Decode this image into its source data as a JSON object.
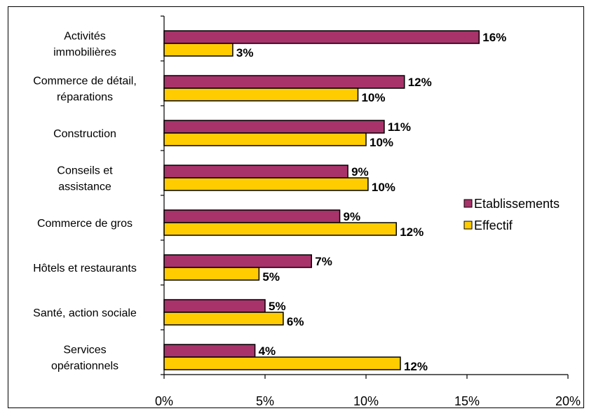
{
  "chart_data": {
    "type": "bar",
    "orientation": "horizontal",
    "categories": [
      [
        "Activités",
        "immobilières"
      ],
      [
        "Commerce de détail,",
        "réparations"
      ],
      [
        "Construction"
      ],
      [
        "Conseils et",
        "assistance"
      ],
      [
        "Commerce de gros"
      ],
      [
        "Hôtels et restaurants"
      ],
      [
        "Santé, action sociale"
      ],
      [
        "Services",
        "opérationnels"
      ]
    ],
    "series": [
      {
        "name": "Etablissements",
        "color": "#a8336b",
        "values": [
          15.6,
          11.9,
          10.9,
          9.1,
          8.7,
          7.3,
          5.0,
          4.5
        ],
        "labels": [
          "16%",
          "12%",
          "11%",
          "9%",
          "9%",
          "7%",
          "5%",
          "4%"
        ]
      },
      {
        "name": "Effectif",
        "color": "#ffcc00",
        "values": [
          3.4,
          9.6,
          10.0,
          10.1,
          11.5,
          4.7,
          5.9,
          11.7
        ],
        "labels": [
          "3%",
          "10%",
          "10%",
          "10%",
          "12%",
          "5%",
          "6%",
          "12%"
        ]
      }
    ],
    "xlim": [
      0,
      20
    ],
    "xticks": [
      "0%",
      "5%",
      "10%",
      "15%",
      "20%"
    ],
    "legend_position": "right",
    "grid": false
  }
}
